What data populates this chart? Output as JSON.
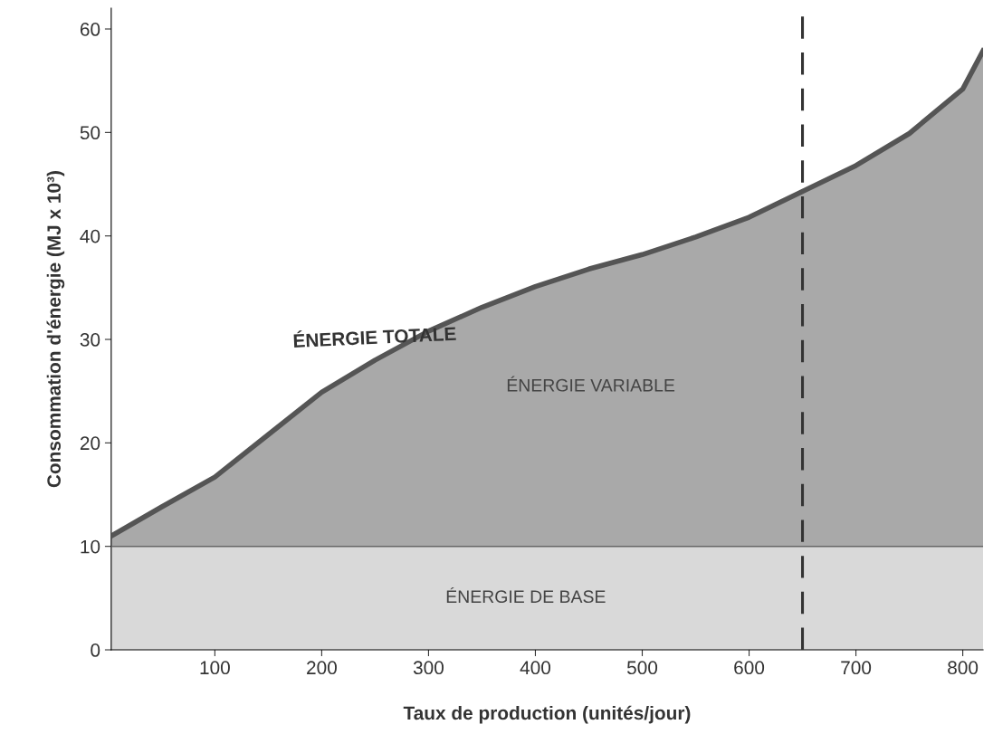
{
  "chart_data": {
    "type": "area",
    "xlabel": "Taux de production (unités/jour)",
    "ylabel": "Consommation d'énergie (MJ x 10³)",
    "x": [
      3,
      50,
      100,
      150,
      200,
      250,
      300,
      350,
      400,
      450,
      500,
      550,
      600,
      650,
      700,
      750,
      800,
      819
    ],
    "series": [
      {
        "name": "ÉNERGIE TOTALE",
        "color": "#a9a9a9",
        "values": [
          11,
          13.8,
          16.7,
          20.8,
          24.9,
          28.0,
          30.8,
          33.1,
          35.1,
          36.8,
          38.2,
          39.9,
          41.8,
          44.3,
          46.8,
          49.9,
          54.2,
          57.9
        ]
      },
      {
        "name": "ÉNERGIE DE BASE",
        "color": "#d9d9d9",
        "values": [
          10,
          10,
          10,
          10,
          10,
          10,
          10,
          10,
          10,
          10,
          10,
          10,
          10,
          10,
          10,
          10,
          10,
          10
        ]
      }
    ],
    "annotations": [
      "ÉNERGIE VARIABLE"
    ],
    "ref_lines": [
      {
        "axis": "x",
        "value": 650,
        "label": null,
        "color": "#333333",
        "line_style": "dashed"
      }
    ],
    "xlim": [
      3,
      819
    ],
    "ylim": [
      0,
      62
    ],
    "xticks": [
      100,
      200,
      300,
      400,
      500,
      600,
      700,
      800
    ],
    "yticks": [
      0,
      10,
      20,
      30,
      40,
      50,
      60
    ],
    "grid": false,
    "legend": false
  }
}
